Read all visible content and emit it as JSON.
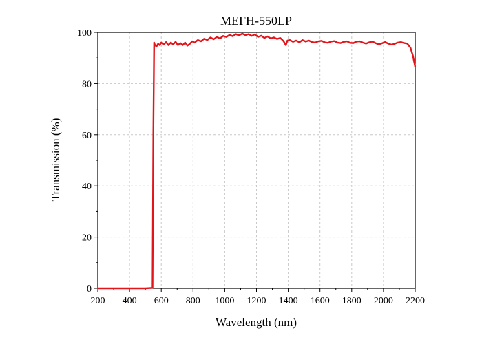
{
  "chart_data": {
    "type": "line",
    "title": "MEFH-550LP",
    "xlabel": "Wavelength (nm)",
    "ylabel": "Transmission (%)",
    "xlim": [
      200,
      2200
    ],
    "ylim": [
      0,
      100
    ],
    "xticks": [
      200,
      400,
      600,
      800,
      1000,
      1200,
      1400,
      1600,
      1800,
      2000,
      2200
    ],
    "yticks": [
      0,
      20,
      40,
      60,
      80,
      100
    ],
    "grid": true,
    "line_color": "#e3151b",
    "series": [
      {
        "x": [
          200,
          300,
          400,
          500,
          545,
          550,
          555,
          560,
          570,
          580,
          590,
          600,
          615,
          630,
          645,
          660,
          675,
          690,
          705,
          720,
          735,
          750,
          765,
          780,
          795,
          810,
          830,
          850,
          870,
          890,
          910,
          930,
          950,
          970,
          990,
          1010,
          1030,
          1050,
          1070,
          1090,
          1110,
          1130,
          1150,
          1170,
          1190,
          1210,
          1230,
          1250,
          1270,
          1290,
          1310,
          1330,
          1350,
          1370,
          1385,
          1395,
          1410,
          1430,
          1450,
          1470,
          1490,
          1510,
          1530,
          1550,
          1570,
          1590,
          1610,
          1630,
          1650,
          1670,
          1690,
          1710,
          1730,
          1750,
          1770,
          1790,
          1810,
          1830,
          1850,
          1870,
          1890,
          1910,
          1930,
          1950,
          1970,
          1990,
          2010,
          2030,
          2050,
          2070,
          2090,
          2110,
          2130,
          2150,
          2170,
          2185,
          2200
        ],
        "y": [
          0,
          0,
          0,
          0,
          0.2,
          60,
          96,
          95,
          94.5,
          95.5,
          95,
          96,
          95.2,
          96.2,
          95,
          96,
          95.3,
          96.3,
          95,
          95.8,
          95,
          96,
          94.8,
          95.5,
          96.5,
          96,
          97,
          96.5,
          97.5,
          97,
          98,
          97.3,
          98.2,
          97.6,
          98.6,
          98.2,
          99,
          98.5,
          99.3,
          98.8,
          99.5,
          98.9,
          99.3,
          98.6,
          99.2,
          98.2,
          98.7,
          97.8,
          98.4,
          97.6,
          98,
          97.4,
          97.8,
          96.6,
          95,
          96.8,
          97,
          96.3,
          96.8,
          96.1,
          97,
          96.4,
          96.8,
          96.2,
          96,
          96.5,
          96.7,
          96.1,
          95.9,
          96.4,
          96.6,
          96,
          95.8,
          96.3,
          96.5,
          95.9,
          95.8,
          96.4,
          96.5,
          96,
          95.6,
          96.1,
          96.4,
          95.8,
          95.3,
          95.7,
          96.2,
          95.6,
          95.2,
          95.5,
          96,
          96.2,
          95.8,
          95.6,
          94,
          91,
          86.5
        ]
      }
    ]
  }
}
